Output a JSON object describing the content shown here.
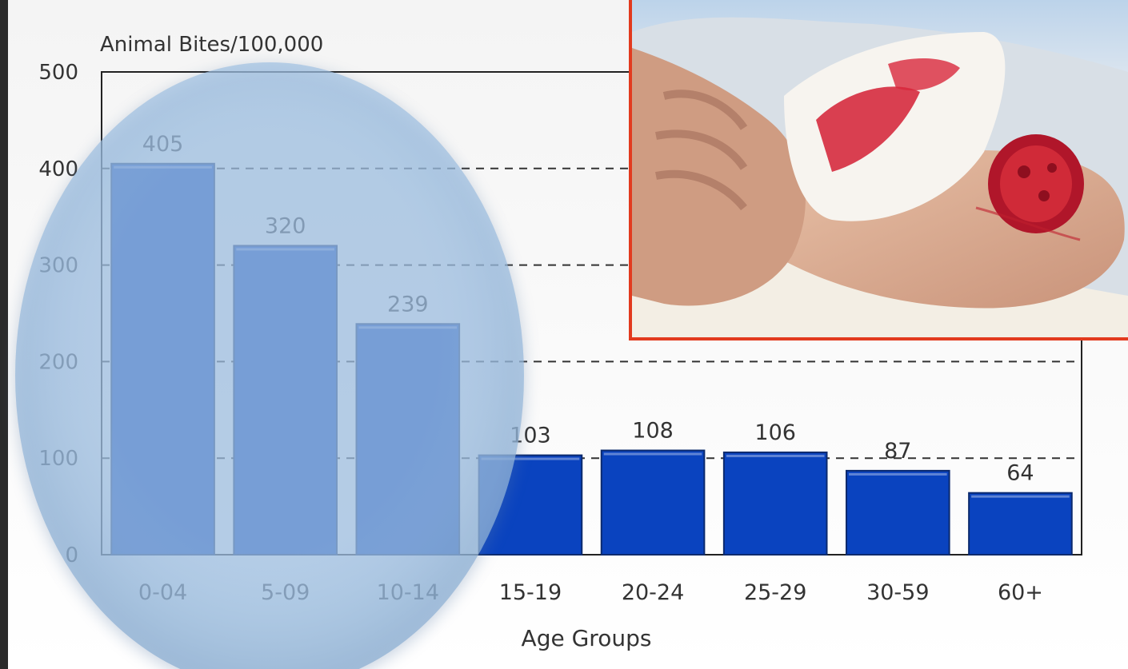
{
  "chart_data": {
    "type": "bar",
    "ylabel": "Animal Bites/100,000",
    "xlabel": "Age Groups",
    "categories": [
      "0-04",
      "5-09",
      "10-14",
      "15-19",
      "20-24",
      "25-29",
      "30-59",
      "60+"
    ],
    "values": [
      405,
      320,
      239,
      103,
      108,
      106,
      87,
      64
    ],
    "ylim": [
      0,
      500
    ],
    "yticks": [
      0,
      100,
      200,
      300,
      400,
      500
    ],
    "grid": "dashed-horizontal",
    "colors": {
      "bar": "#0a43bf",
      "bar_stroke": "#0b2a6e",
      "grid": "#333333"
    }
  },
  "highlight": {
    "shape": "ellipse",
    "color": "#a9c9ea"
  },
  "inset_photo": {
    "subject": "bandaged-arm-wound",
    "border_color": "#e23a1e"
  }
}
